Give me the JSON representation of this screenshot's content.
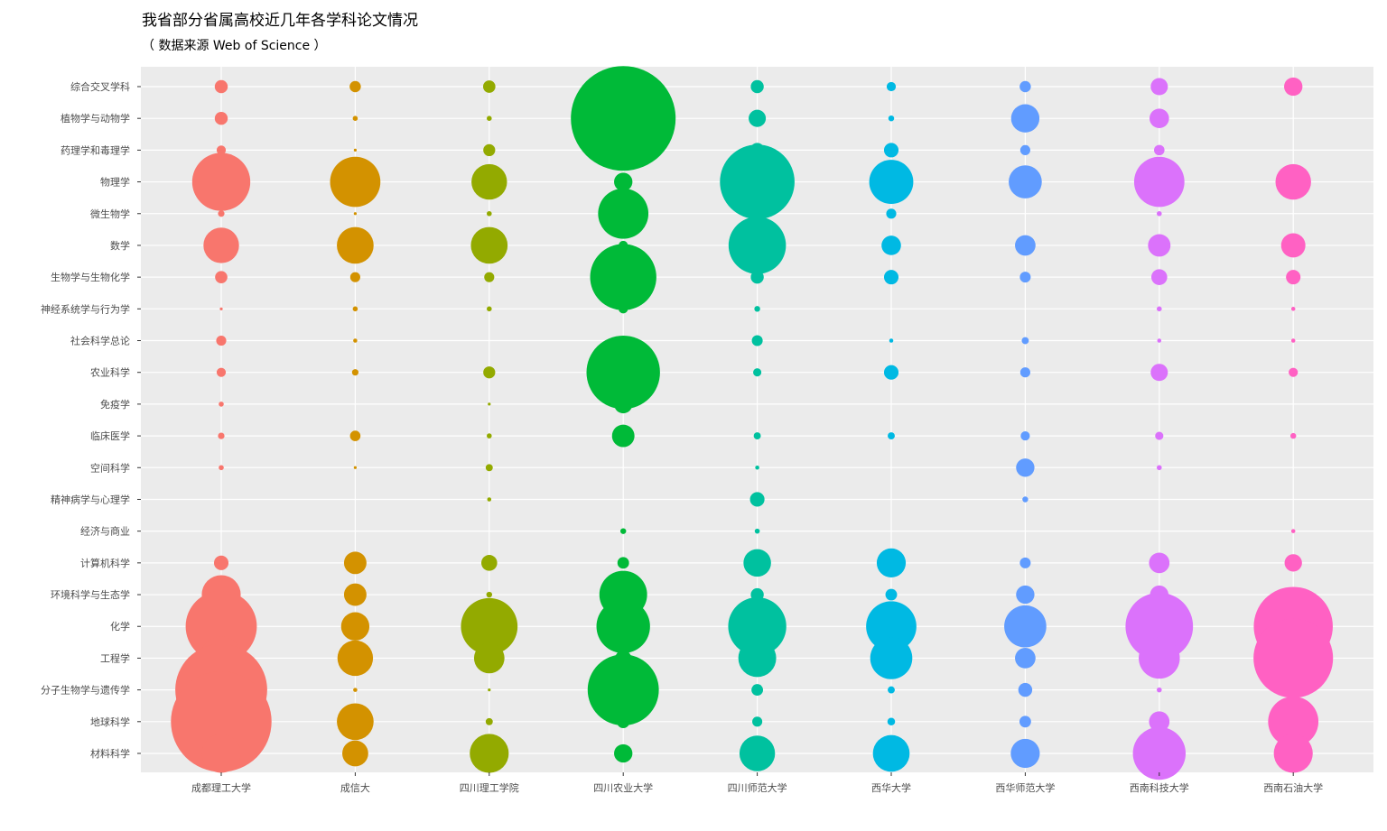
{
  "chart_data": {
    "type": "scatter",
    "title": "我省部分省属高校近几年各学科论文情况",
    "subtitle": "（ 数据来源 Web of Science ）",
    "universities": [
      "成都理工大学",
      "成信大",
      "四川理工学院",
      "四川农业大学",
      "四川师范大学",
      "西华大学",
      "西华师范大学",
      "西南科技大学",
      "西南石油大学"
    ],
    "disciplines": [
      "综合交叉学科",
      "植物学与动物学",
      "药理学和毒理学",
      "物理学",
      "微生物学",
      "数学",
      "生物学与生物化学",
      "神经系统学与行为学",
      "社会科学总论",
      "农业科学",
      "免疫学",
      "临床医学",
      "空间科学",
      "精神病学与心理学",
      "经济与商业",
      "计算机科学",
      "环境科学与生态学",
      "化学",
      "工程学",
      "分子生物学与遗传学",
      "地球科学",
      "材料科学"
    ],
    "colors": [
      "#F8766D",
      "#D39200",
      "#93AA00",
      "#00BA38",
      "#00C19F",
      "#00B9E3",
      "#619CFF",
      "#DB72FB",
      "#FF61C3"
    ],
    "note_values": "paper counts per university (rows) × discipline (columns), estimated from bubble area",
    "values": [
      [
        20,
        20,
        10,
        400,
        5,
        150,
        18,
        1,
        12,
        10,
        3,
        5,
        3,
        0,
        0,
        25,
        180,
        600,
        220,
        1000,
        1200,
        180
      ],
      [
        15,
        3,
        1,
        300,
        1,
        160,
        12,
        3,
        2,
        5,
        0,
        13,
        1,
        0,
        0,
        60,
        60,
        95,
        150,
        2,
        160,
        80
      ],
      [
        18,
        3,
        17,
        150,
        3,
        160,
        12,
        3,
        0,
        17,
        1,
        3,
        6,
        2,
        0,
        30,
        4,
        380,
        110,
        1,
        6,
        180
      ],
      [
        6,
        1300,
        5,
        40,
        300,
        10,
        520,
        10,
        10,
        640,
        40,
        60,
        0,
        0,
        4,
        16,
        270,
        340,
        30,
        600,
        20,
        40
      ],
      [
        20,
        35,
        25,
        660,
        1,
        390,
        20,
        4,
        14,
        8,
        0,
        6,
        2,
        25,
        3,
        90,
        20,
        400,
        170,
        16,
        12,
        150
      ],
      [
        10,
        4,
        25,
        230,
        12,
        45,
        25,
        0,
        2,
        25,
        0,
        6,
        0,
        0,
        0,
        100,
        16,
        300,
        210,
        6,
        7,
        160
      ],
      [
        15,
        95,
        12,
        130,
        0,
        50,
        14,
        0,
        6,
        12,
        0,
        10,
        40,
        4,
        0,
        14,
        40,
        210,
        50,
        23,
        16,
        100
      ],
      [
        35,
        45,
        13,
        300,
        3,
        60,
        30,
        3,
        2,
        35,
        0,
        8,
        3,
        0,
        0,
        50,
        40,
        540,
        200,
        3,
        50,
        330
      ],
      [
        40,
        0,
        0,
        150,
        0,
        70,
        25,
        2,
        2,
        10,
        0,
        4,
        0,
        0,
        2,
        36,
        0,
        740,
        750,
        0,
        300,
        180
      ]
    ]
  }
}
